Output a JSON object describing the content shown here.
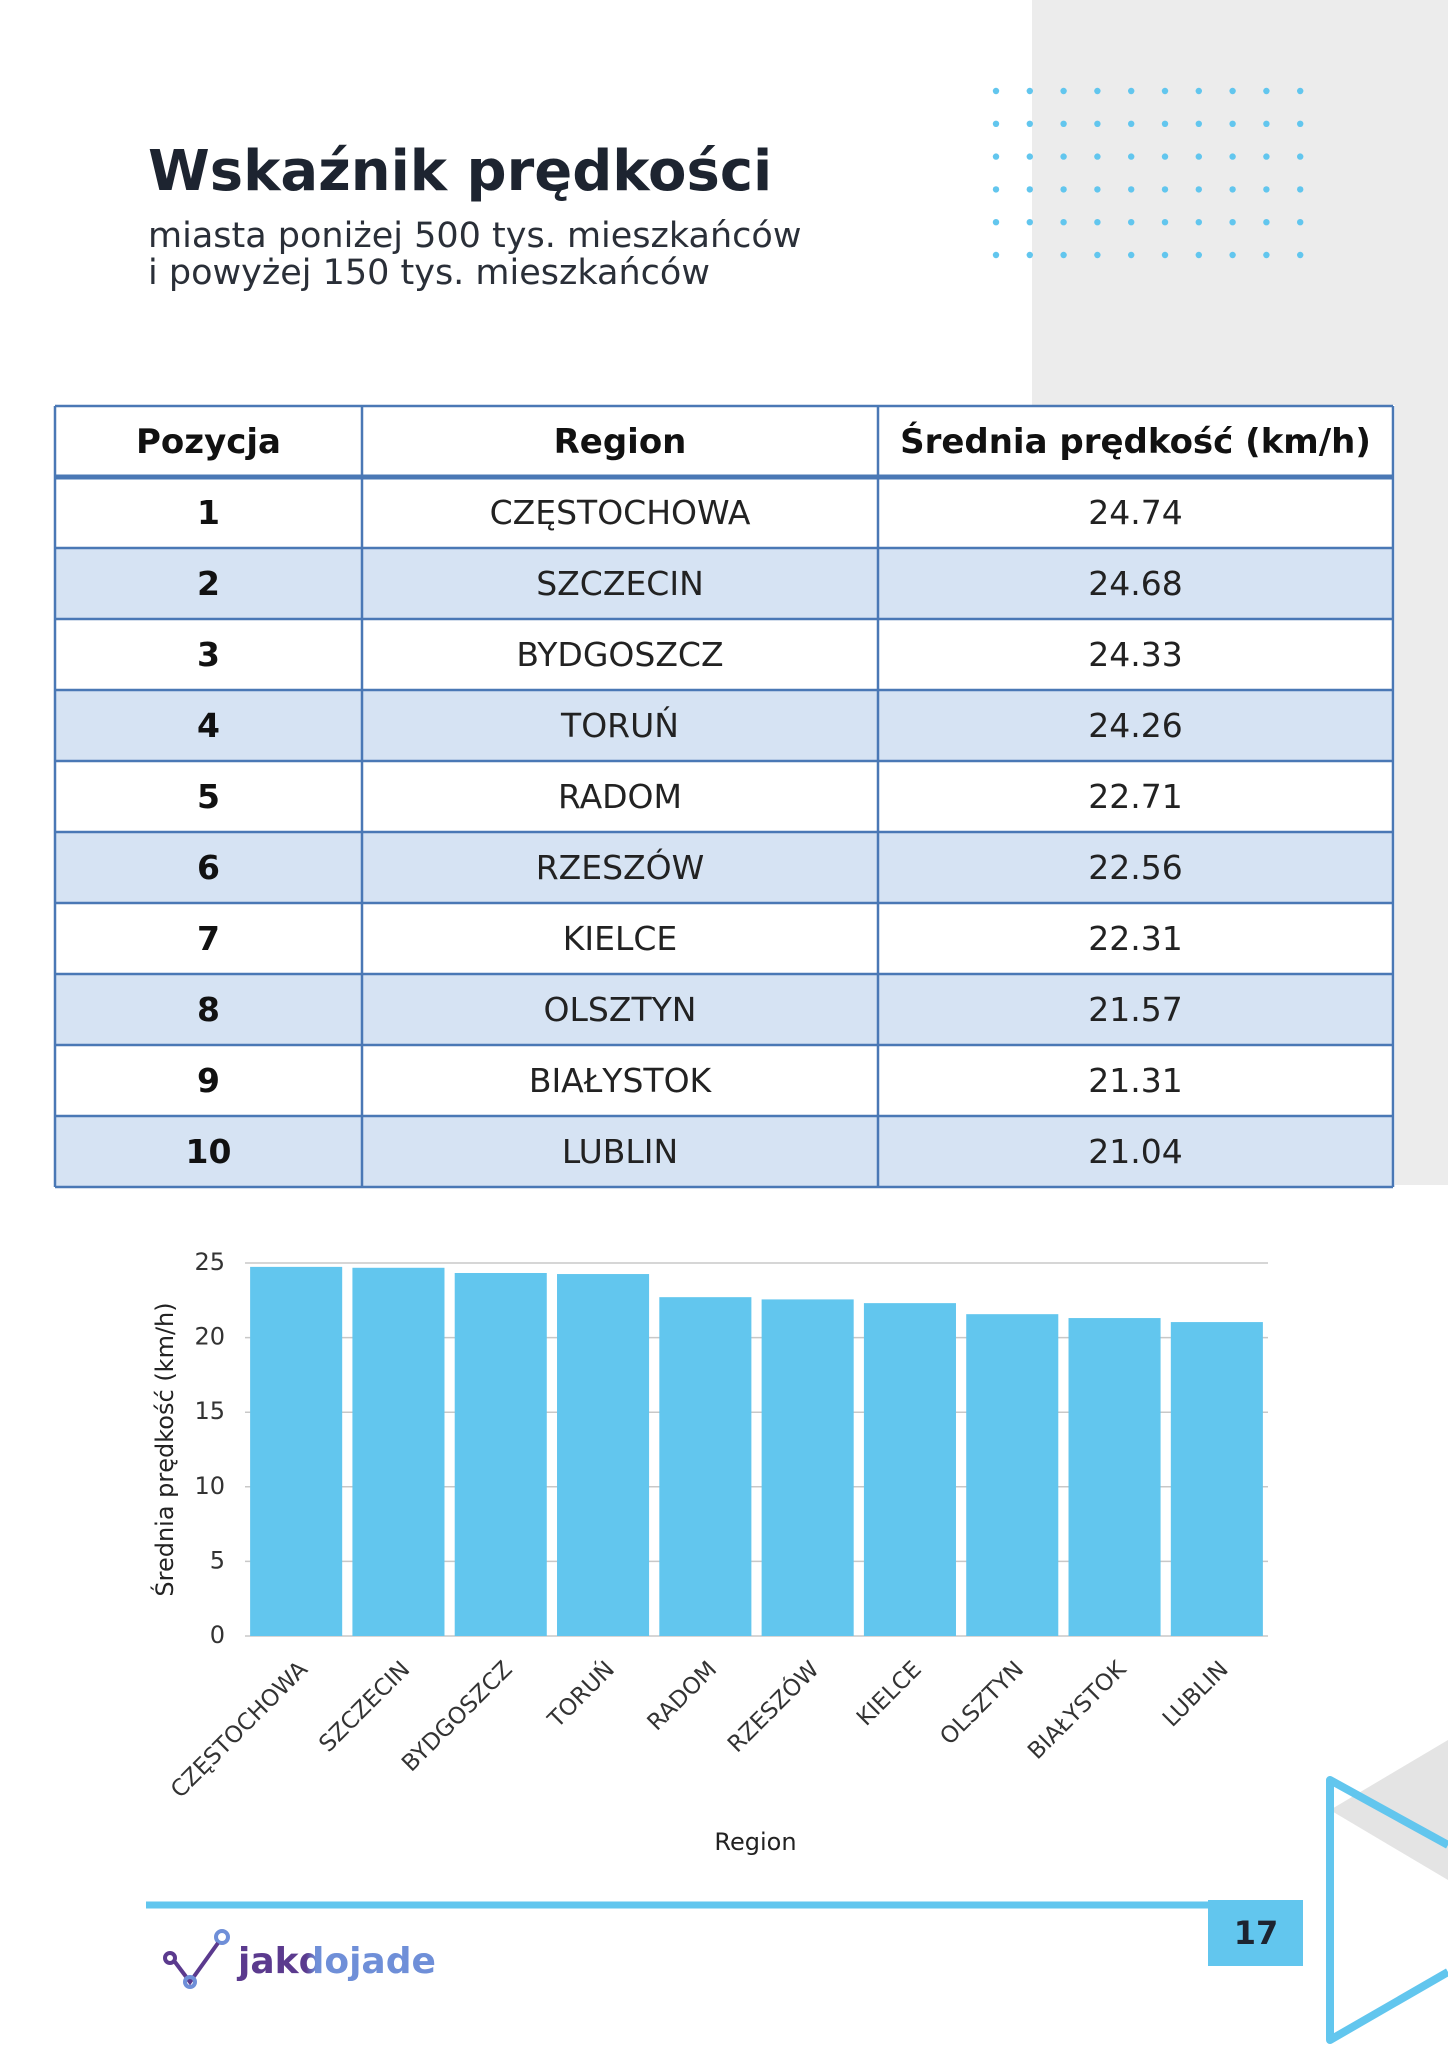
{
  "header": {
    "title": "Wskaźnik prędkości",
    "subtitle": [
      "miasta poniżej 500 tys. mieszkańców",
      "i powyżej 150 tys. mieszkańców"
    ]
  },
  "table": {
    "columns": [
      "Pozycja",
      "Region",
      "Średnia prędkość (km/h)"
    ],
    "rows": [
      [
        "1",
        "CZĘSTOCHOWA",
        "24.74"
      ],
      [
        "2",
        "SZCZECIN",
        "24.68"
      ],
      [
        "3",
        "BYDGOSZCZ",
        "24.33"
      ],
      [
        "4",
        "TORUŃ",
        "24.26"
      ],
      [
        "5",
        "RADOM",
        "22.71"
      ],
      [
        "6",
        "RZESZÓW",
        "22.56"
      ],
      [
        "7",
        "KIELCE",
        "22.31"
      ],
      [
        "8",
        "OLSZTYN",
        "21.57"
      ],
      [
        "9",
        "BIAŁYSTOK",
        "21.31"
      ],
      [
        "10",
        "LUBLIN",
        "21.04"
      ]
    ]
  },
  "chart_data": {
    "type": "bar",
    "x_label": "Region",
    "y_label": "Średnia prędkość (km/h)",
    "categories": [
      "CZĘSTOCHOWA",
      "SZCZECIN",
      "BYDGOSZCZ",
      "TORUŃ",
      "RADOM",
      "RZESZÓW",
      "KIELCE",
      "OLSZTYN",
      "BIAŁYSTOK",
      "LUBLIN"
    ],
    "values": [
      24.74,
      24.68,
      24.33,
      24.26,
      22.71,
      22.56,
      22.31,
      21.57,
      21.31,
      21.04
    ],
    "color": "#62c6ee",
    "ylim": [
      0,
      25
    ],
    "yticks": [
      0,
      5,
      10,
      15,
      20,
      25
    ],
    "grid": true
  },
  "footer": {
    "logo": "jakdojade",
    "page_number": "17"
  }
}
